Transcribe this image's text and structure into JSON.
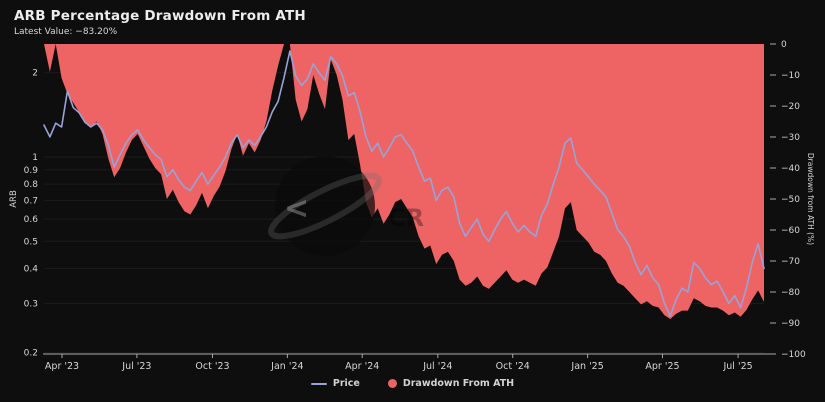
{
  "header": {
    "title": "ARB Percentage Drawdown From ATH",
    "subtitle": "Latest Value: −83.20%"
  },
  "colors": {
    "background": "#0e0e0e",
    "drawdown_fill": "#ee6464",
    "price_line": "#98a3d7",
    "axis_line": "#a8a8a8",
    "axis_text": "#d6d6d6",
    "grid": "rgba(255,255,255,0.06)"
  },
  "legend": [
    {
      "label": "Price",
      "marker": "line",
      "color": "#98a3d7"
    },
    {
      "label": "Drawdown From ATH",
      "marker": "dot",
      "color": "#ee6464"
    }
  ],
  "y_axis_left": {
    "label": "ARB",
    "ticks": [
      {
        "label": "2",
        "v": 2
      },
      {
        "label": "1",
        "v": 1
      },
      {
        "label": "0.9",
        "v": 0.9
      },
      {
        "label": "0.8",
        "v": 0.8
      },
      {
        "label": "0.7",
        "v": 0.7
      },
      {
        "label": "0.6",
        "v": 0.6
      },
      {
        "label": "0.5",
        "v": 0.5
      },
      {
        "label": "0.4",
        "v": 0.4
      },
      {
        "label": "0.3",
        "v": 0.3
      },
      {
        "label": "0.2",
        "v": 0.2
      }
    ]
  },
  "y_axis_right": {
    "label": "Drawdown from ATH (%)",
    "ticks": [
      {
        "label": "0",
        "v": 0
      },
      {
        "label": "−10",
        "v": -10
      },
      {
        "label": "−20",
        "v": -20
      },
      {
        "label": "−30",
        "v": -30
      },
      {
        "label": "−40",
        "v": -40
      },
      {
        "label": "−50",
        "v": -50
      },
      {
        "label": "−60",
        "v": -60
      },
      {
        "label": "−70",
        "v": -70
      },
      {
        "label": "−80",
        "v": -80
      },
      {
        "label": "−90",
        "v": -90
      },
      {
        "label": "−100",
        "v": -100
      }
    ]
  },
  "x_axis": {
    "ticks": [
      {
        "label": "Apr '23",
        "f": 0.025
      },
      {
        "label": "Jul '23",
        "f": 0.129
      },
      {
        "label": "Oct '23",
        "f": 0.234
      },
      {
        "label": "Jan '24",
        "f": 0.338
      },
      {
        "label": "Apr '24",
        "f": 0.442
      },
      {
        "label": "Jul '24",
        "f": 0.547
      },
      {
        "label": "Oct '24",
        "f": 0.651
      },
      {
        "label": "Jan '25",
        "f": 0.755
      },
      {
        "label": "Apr '25",
        "f": 0.859
      },
      {
        "label": "Jul '25",
        "f": 0.964
      }
    ]
  },
  "chart_data": {
    "type": "area+line",
    "x_range_labels": [
      "Apr '23",
      "Jul '23",
      "Oct '23",
      "Jan '24",
      "Apr '24",
      "Jul '24",
      "Oct '24",
      "Jan '25",
      "Apr '25",
      "Jul '25"
    ],
    "sampling": "weekly",
    "left_axis_scale": "log",
    "left_axis_range": [
      0.2,
      2.53
    ],
    "right_axis_range": [
      -100,
      0
    ],
    "latest_drawdown_pct": -83.2,
    "series": [
      {
        "name": "Price",
        "axis": "left",
        "type": "line",
        "values": [
          1.3,
          1.18,
          1.32,
          1.28,
          1.72,
          1.5,
          1.44,
          1.33,
          1.28,
          1.32,
          1.25,
          1.1,
          0.92,
          1.02,
          1.12,
          1.2,
          1.25,
          1.15,
          1.08,
          1.02,
          0.98,
          0.85,
          0.9,
          0.83,
          0.78,
          0.76,
          0.82,
          0.88,
          0.8,
          0.86,
          0.92,
          1.0,
          1.12,
          1.2,
          1.08,
          1.15,
          1.1,
          1.18,
          1.28,
          1.45,
          1.58,
          1.92,
          2.39,
          1.95,
          1.8,
          1.9,
          2.15,
          2.0,
          1.88,
          2.28,
          2.15,
          1.95,
          1.65,
          1.7,
          1.45,
          1.18,
          1.05,
          1.12,
          1.0,
          1.08,
          1.18,
          1.2,
          1.12,
          1.05,
          0.92,
          0.82,
          0.84,
          0.7,
          0.76,
          0.78,
          0.72,
          0.58,
          0.52,
          0.56,
          0.6,
          0.53,
          0.5,
          0.55,
          0.6,
          0.64,
          0.58,
          0.54,
          0.57,
          0.54,
          0.52,
          0.62,
          0.68,
          0.8,
          0.92,
          1.12,
          1.17,
          0.95,
          0.9,
          0.85,
          0.8,
          0.76,
          0.72,
          0.63,
          0.55,
          0.52,
          0.48,
          0.42,
          0.38,
          0.41,
          0.37,
          0.35,
          0.3,
          0.27,
          0.31,
          0.34,
          0.33,
          0.42,
          0.4,
          0.37,
          0.35,
          0.36,
          0.33,
          0.3,
          0.32,
          0.29,
          0.34,
          0.42,
          0.49,
          0.4
        ]
      },
      {
        "name": "Drawdown From ATH",
        "axis": "right",
        "type": "area",
        "values": [
          0,
          -9,
          0,
          -11,
          -16,
          -19,
          -22,
          -25,
          -27,
          -25,
          -29,
          -37,
          -43,
          -40,
          -35,
          -31,
          -29,
          -33,
          -37,
          -40,
          -42,
          -50,
          -47,
          -51,
          -54,
          -55,
          -52,
          -48,
          -53,
          -49,
          -46,
          -41,
          -34,
          -29,
          -36,
          -32,
          -35,
          -31,
          -25,
          -15,
          -7,
          0,
          0,
          -18,
          -25,
          -21,
          -10,
          -16,
          -21,
          -5,
          -10,
          -18,
          -31,
          -29,
          -39,
          -51,
          -56,
          -53,
          -58,
          -55,
          -51,
          -50,
          -53,
          -56,
          -62,
          -66,
          -65,
          -71,
          -68,
          -67,
          -70,
          -76,
          -78,
          -77,
          -75,
          -78,
          -79,
          -77,
          -75,
          -73,
          -76,
          -77,
          -76,
          -77,
          -78,
          -74,
          -72,
          -67,
          -62,
          -53,
          -51,
          -60,
          -62,
          -64,
          -67,
          -68,
          -70,
          -74,
          -77,
          -78,
          -80,
          -82,
          -84,
          -83,
          -84.5,
          -85,
          -87.5,
          -88.7,
          -87,
          -86,
          -86,
          -82,
          -83,
          -84.5,
          -85,
          -85,
          -86,
          -87.5,
          -86.6,
          -88,
          -85.8,
          -82.4,
          -79.5,
          -83.2
        ]
      }
    ]
  },
  "watermark": {
    "name": "cryptorank-logo-watermark",
    "text": "CR"
  }
}
